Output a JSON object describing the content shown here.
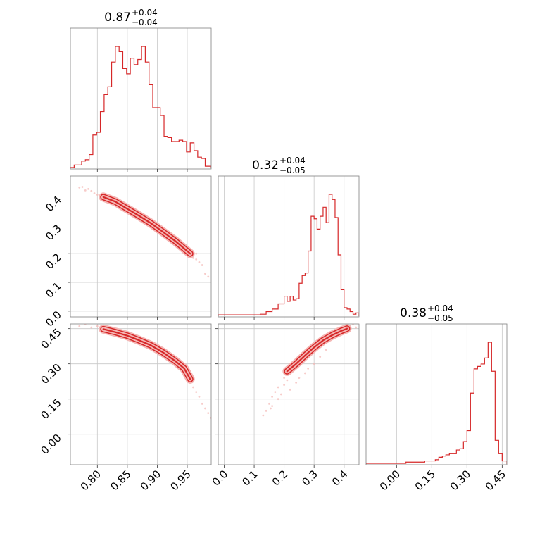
{
  "chart_data": {
    "type": "corner",
    "color": "#d62728",
    "light_color": "#f4b6b4",
    "grid": true,
    "diagonal": [
      {
        "title_value": "0.87",
        "title_plus": "+0.04",
        "title_minus": "−0.04",
        "xlim": [
          0.755,
          0.99
        ],
        "bin_edges": [
          0.755,
          0.7613,
          0.7675,
          0.7738,
          0.78,
          0.7863,
          0.7925,
          0.7988,
          0.805,
          0.8113,
          0.8175,
          0.8238,
          0.83,
          0.8363,
          0.8425,
          0.8488,
          0.855,
          0.8613,
          0.8675,
          0.8738,
          0.88,
          0.8863,
          0.8925,
          0.8988,
          0.905,
          0.9113,
          0.9175,
          0.9238,
          0.93,
          0.9363,
          0.9425,
          0.9488,
          0.955,
          0.9613,
          0.9675,
          0.9738,
          0.98,
          0.99
        ],
        "counts": [
          0,
          0.02,
          0.02,
          0.05,
          0.06,
          0.1,
          0.25,
          0.27,
          0.43,
          0.56,
          0.62,
          0.81,
          0.93,
          0.89,
          0.76,
          0.72,
          0.84,
          0.79,
          0.83,
          0.93,
          0.81,
          0.64,
          0.46,
          0.46,
          0.4,
          0.24,
          0.23,
          0.2,
          0.2,
          0.21,
          0.2,
          0.12,
          0.19,
          0.13,
          0.08,
          0.07,
          0.01
        ]
      },
      {
        "title_value": "0.32",
        "title_plus": "+0.04",
        "title_minus": "−0.05",
        "xlim": [
          -0.02,
          0.45
        ],
        "bin_edges": [
          -0.02,
          0,
          0.02,
          0.04,
          0.06,
          0.08,
          0.1,
          0.12,
          0.14,
          0.16,
          0.18,
          0.2,
          0.21,
          0.22,
          0.23,
          0.24,
          0.25,
          0.26,
          0.27,
          0.28,
          0.29,
          0.3,
          0.31,
          0.32,
          0.33,
          0.34,
          0.35,
          0.36,
          0.37,
          0.38,
          0.39,
          0.4,
          0.41,
          0.42,
          0.43,
          0.44,
          0.45
        ],
        "counts": [
          0.005,
          0.005,
          0.005,
          0.005,
          0.005,
          0.005,
          0.005,
          0.01,
          0.03,
          0.05,
          0.09,
          0.15,
          0.11,
          0.15,
          0.12,
          0.13,
          0.25,
          0.31,
          0.33,
          0.5,
          0.77,
          0.75,
          0.67,
          0.77,
          0.84,
          0.72,
          0.94,
          0.9,
          0.76,
          0.47,
          0.2,
          0.06,
          0.05,
          0.03,
          0.01,
          0.02
        ]
      },
      {
        "title_value": "0.38",
        "title_plus": "+0.04",
        "title_minus": "−0.05",
        "xlim": [
          -0.13,
          0.47
        ],
        "bin_edges": [
          -0.13,
          0.04,
          0.05,
          0.06,
          0.075,
          0.09,
          0.105,
          0.12,
          0.135,
          0.15,
          0.165,
          0.18,
          0.195,
          0.21,
          0.225,
          0.24,
          0.255,
          0.27,
          0.285,
          0.3,
          0.315,
          0.33,
          0.345,
          0.36,
          0.375,
          0.39,
          0.405,
          0.42,
          0.435,
          0.45,
          0.47
        ],
        "counts": [
          0,
          0.01,
          0.01,
          0.01,
          0.01,
          0.01,
          0.01,
          0.02,
          0.02,
          0.02,
          0.03,
          0.05,
          0.06,
          0.07,
          0.08,
          0.08,
          0.11,
          0.12,
          0.18,
          0.27,
          0.58,
          0.78,
          0.8,
          0.82,
          0.87,
          1.0,
          0.76,
          0.19,
          0.08,
          0.02
        ]
      }
    ],
    "contours": [
      {
        "row": 1,
        "col": 0,
        "xlim": [
          0.755,
          0.99
        ],
        "ylim": [
          -0.02,
          0.47
        ],
        "ridge": [
          [
            0.81,
            0.397
          ],
          [
            0.83,
            0.381
          ],
          [
            0.85,
            0.356
          ],
          [
            0.87,
            0.331
          ],
          [
            0.89,
            0.305
          ],
          [
            0.91,
            0.275
          ],
          [
            0.93,
            0.244
          ],
          [
            0.955,
            0.2
          ]
        ],
        "scatter": [
          [
            0.77,
            0.43
          ],
          [
            0.775,
            0.432
          ],
          [
            0.78,
            0.42
          ],
          [
            0.785,
            0.425
          ],
          [
            0.79,
            0.418
          ],
          [
            0.795,
            0.41
          ],
          [
            0.8,
            0.405
          ],
          [
            0.805,
            0.4
          ],
          [
            0.94,
            0.22
          ],
          [
            0.95,
            0.21
          ],
          [
            0.955,
            0.19
          ],
          [
            0.96,
            0.185
          ],
          [
            0.965,
            0.18
          ],
          [
            0.97,
            0.17
          ],
          [
            0.975,
            0.16
          ],
          [
            0.98,
            0.13
          ],
          [
            0.985,
            0.12
          ],
          [
            0.965,
            0.2
          ],
          [
            0.945,
            0.23
          ]
        ]
      },
      {
        "row": 2,
        "col": 0,
        "xlim": [
          0.755,
          0.99
        ],
        "ylim": [
          -0.13,
          0.47
        ],
        "ridge": [
          [
            0.81,
            0.448
          ],
          [
            0.83,
            0.435
          ],
          [
            0.85,
            0.42
          ],
          [
            0.87,
            0.4
          ],
          [
            0.89,
            0.378
          ],
          [
            0.91,
            0.348
          ],
          [
            0.93,
            0.312
          ],
          [
            0.945,
            0.28
          ],
          [
            0.955,
            0.235
          ]
        ],
        "scatter": [
          [
            0.77,
            0.46
          ],
          [
            0.78,
            0.47
          ],
          [
            0.79,
            0.455
          ],
          [
            0.8,
            0.46
          ],
          [
            0.805,
            0.455
          ],
          [
            0.95,
            0.25
          ],
          [
            0.955,
            0.22
          ],
          [
            0.96,
            0.2
          ],
          [
            0.965,
            0.18
          ],
          [
            0.97,
            0.16
          ],
          [
            0.975,
            0.13
          ],
          [
            0.98,
            0.11
          ],
          [
            0.985,
            0.09
          ],
          [
            0.99,
            0.07
          ]
        ]
      },
      {
        "row": 2,
        "col": 1,
        "xlim": [
          -0.02,
          0.45
        ],
        "ylim": [
          -0.13,
          0.47
        ],
        "ridge": [
          [
            0.21,
            0.268
          ],
          [
            0.24,
            0.3
          ],
          [
            0.27,
            0.336
          ],
          [
            0.3,
            0.37
          ],
          [
            0.33,
            0.4
          ],
          [
            0.36,
            0.422
          ],
          [
            0.39,
            0.44
          ],
          [
            0.41,
            0.45
          ]
        ],
        "scatter": [
          [
            0.13,
            0.08
          ],
          [
            0.14,
            0.1
          ],
          [
            0.15,
            0.13
          ],
          [
            0.16,
            0.16
          ],
          [
            0.17,
            0.18
          ],
          [
            0.18,
            0.2
          ],
          [
            0.16,
            0.12
          ],
          [
            0.18,
            0.15
          ],
          [
            0.19,
            0.17
          ],
          [
            0.2,
            0.21
          ],
          [
            0.22,
            0.19
          ],
          [
            0.24,
            0.22
          ],
          [
            0.25,
            0.24
          ],
          [
            0.27,
            0.26
          ],
          [
            0.28,
            0.28
          ],
          [
            0.3,
            0.3
          ],
          [
            0.32,
            0.33
          ],
          [
            0.34,
            0.36
          ],
          [
            0.42,
            0.46
          ],
          [
            0.43,
            0.47
          ],
          [
            0.44,
            0.455
          ],
          [
            0.155,
            0.11
          ],
          [
            0.2,
            0.24
          ],
          [
            0.21,
            0.23
          ]
        ]
      }
    ],
    "row_y": [
      null,
      {
        "ylim": [
          -0.02,
          0.47
        ],
        "ticks": [
          0.0,
          0.1,
          0.2,
          0.3,
          0.4
        ],
        "tick_labels": [
          "0.0",
          "0.1",
          "0.2",
          "0.3",
          "0.4"
        ]
      },
      {
        "ylim": [
          -0.13,
          0.47
        ],
        "ticks": [
          0.0,
          0.15,
          0.3,
          0.45
        ],
        "tick_labels": [
          "0.00",
          "0.15",
          "0.30",
          "0.45"
        ]
      }
    ],
    "col_x": [
      {
        "ticks": [
          0.8,
          0.85,
          0.9,
          0.95
        ],
        "tick_labels": [
          "0.80",
          "0.85",
          "0.90",
          "0.95"
        ]
      },
      {
        "ticks": [
          0.0,
          0.1,
          0.2,
          0.3,
          0.4
        ],
        "tick_labels": [
          "0.0",
          "0.1",
          "0.2",
          "0.3",
          "0.4"
        ]
      },
      {
        "ticks": [
          0.0,
          0.15,
          0.3,
          0.45
        ],
        "tick_labels": [
          "0.00",
          "0.15",
          "0.30",
          "0.45"
        ]
      }
    ]
  }
}
